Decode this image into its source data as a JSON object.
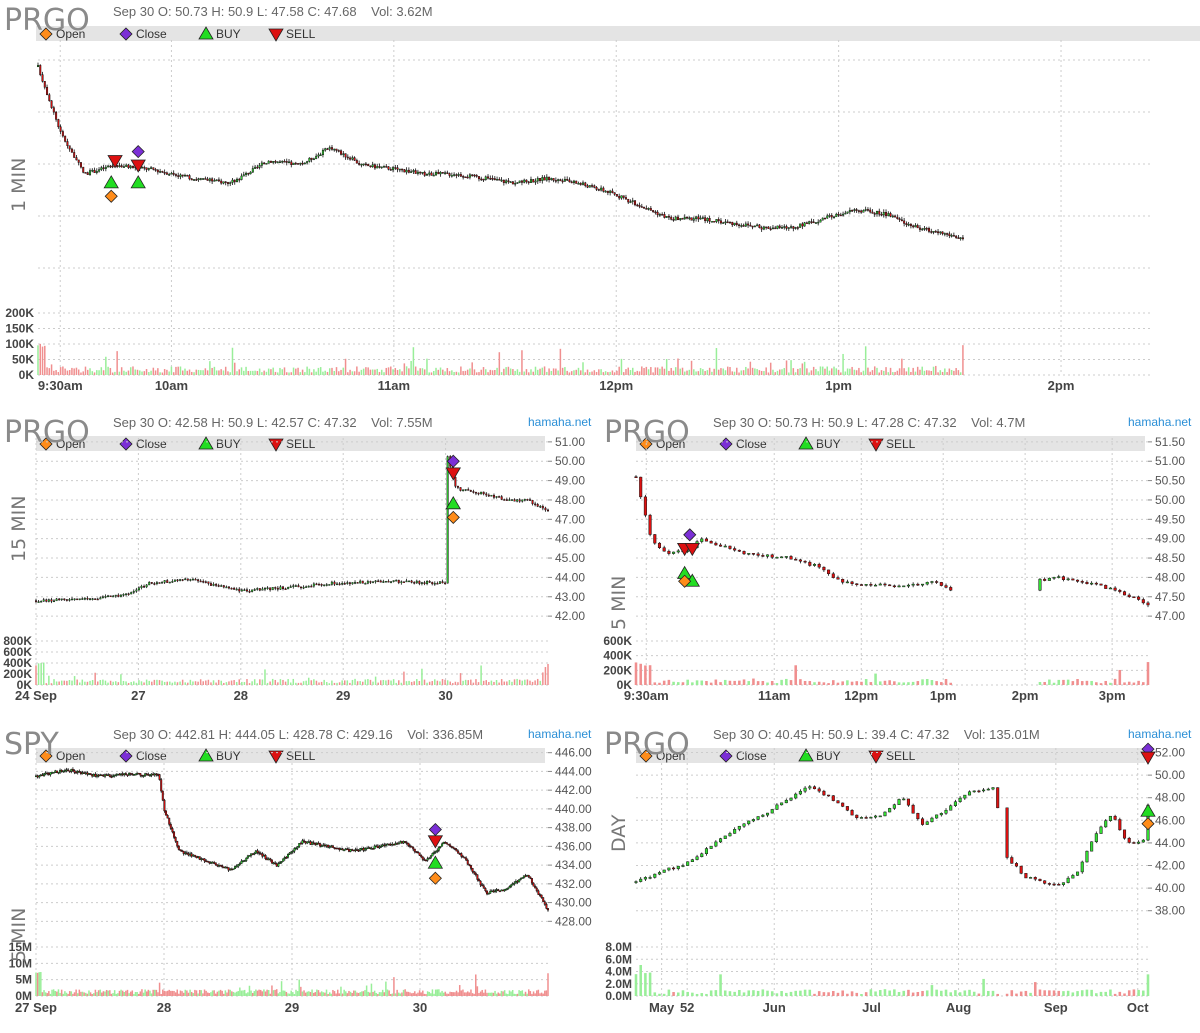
{
  "colors": {
    "up": "#33dd33",
    "down": "#dd1111",
    "volUp": "#99ee99",
    "volDown": "#f08f8f",
    "grid": "#cccccc",
    "open": "#ff8c1a",
    "close": "#7b2fd6",
    "buy": "#22dd22",
    "sell": "#dd1111"
  },
  "legend": {
    "open": "Open",
    "close": "Close",
    "buy": "BUY",
    "sell": "SELL"
  },
  "panels": {
    "p1": {
      "symbol": "PRGO",
      "date": "Sep 30",
      "o": "O: 50.73",
      "h": "H: 50.9",
      "l": "L: 47.58",
      "c": "C: 47.68",
      "vol": "Vol: 3.62M",
      "timeframe": "1 MIN",
      "site": ""
    },
    "p2": {
      "symbol": "PRGO",
      "date": "Sep 30",
      "o": "O: 42.58",
      "h": "H: 50.9",
      "l": "L: 42.57",
      "c": "C: 47.32",
      "vol": "Vol: 7.55M",
      "timeframe": "15 MIN",
      "site": "hamaha.net"
    },
    "p3": {
      "symbol": "PRGO",
      "date": "Sep 30",
      "o": "O: 50.73",
      "h": "H: 50.9",
      "l": "L: 47.28",
      "c": "C: 47.32",
      "vol": "Vol: 4.7M",
      "timeframe": "5 MIN",
      "site": "hamaha.net"
    },
    "p4": {
      "symbol": "SPY",
      "date": "Sep 30",
      "o": "O: 442.81",
      "h": "H: 444.05",
      "l": "L: 428.78",
      "c": "C: 429.16",
      "vol": "Vol: 336.85M",
      "timeframe": "5 MIN",
      "site": "hamaha.net"
    },
    "p5": {
      "symbol": "PRGO",
      "date": "Sep 30",
      "o": "O: 40.45",
      "h": "H: 50.9",
      "l": "L: 39.4",
      "c": "C: 47.32",
      "vol": "Vol: 135.01M",
      "timeframe": "DAY",
      "site": "hamaha.net"
    }
  },
  "chart_data": [
    {
      "id": "p1",
      "type": "candlestick",
      "title": "PRGO 1 MIN",
      "xlabels": [
        "9:30am",
        "10am",
        "11am",
        "12pm",
        "1pm",
        "2pm"
      ],
      "ylabels": [],
      "vol_labels": [
        "200K",
        "150K",
        "100K",
        "50K",
        "0K"
      ],
      "ylim": [
        45.6,
        51.2
      ],
      "vol_max": 230000,
      "path": [
        [
          0,
          50.6
        ],
        [
          0.03,
          49.1
        ],
        [
          0.06,
          48.2
        ],
        [
          0.1,
          48.4
        ],
        [
          0.15,
          48.3
        ],
        [
          0.2,
          48.1
        ],
        [
          0.25,
          48.0
        ],
        [
          0.3,
          48.5
        ],
        [
          0.34,
          48.4
        ],
        [
          0.38,
          48.8
        ],
        [
          0.42,
          48.4
        ],
        [
          0.47,
          48.3
        ],
        [
          0.5,
          48.2
        ],
        [
          0.54,
          48.2
        ],
        [
          0.58,
          48.1
        ],
        [
          0.62,
          48.0
        ],
        [
          0.66,
          48.1
        ],
        [
          0.7,
          48.0
        ],
        [
          0.74,
          47.8
        ],
        [
          0.78,
          47.5
        ],
        [
          0.82,
          47.2
        ],
        [
          0.86,
          47.2
        ],
        [
          0.9,
          47.1
        ],
        [
          0.94,
          47.0
        ],
        [
          0.98,
          47.0
        ],
        [
          1.02,
          47.2
        ],
        [
          1.06,
          47.4
        ],
        [
          1.1,
          47.3
        ],
        [
          1.14,
          47.0
        ],
        [
          1.18,
          46.85
        ],
        [
          1.2,
          46.75
        ]
      ],
      "xrange": [
        0,
        1.3
      ],
      "markers": [
        {
          "kind": "buy",
          "t": 0.095,
          "price": 48.0
        },
        {
          "kind": "buy",
          "t": 0.13,
          "price": 48.0
        },
        {
          "kind": "open",
          "t": 0.095,
          "price": 47.7
        },
        {
          "kind": "sell",
          "t": 0.1,
          "price": 48.5
        },
        {
          "kind": "sell",
          "t": 0.13,
          "price": 48.4
        },
        {
          "kind": "close",
          "t": 0.13,
          "price": 48.7
        }
      ]
    },
    {
      "id": "p2",
      "type": "candlestick",
      "title": "PRGO 15 MIN",
      "xlabels": [
        "24 Sep",
        "27",
        "28",
        "29",
        "30"
      ],
      "ylabels": [
        "51.00",
        "50.00",
        "49.00",
        "48.00",
        "47.00",
        "46.00",
        "45.00",
        "44.00",
        "43.00",
        "42.00"
      ],
      "vol_labels": [
        "800K",
        "600K",
        "400K",
        "200K",
        "0K"
      ],
      "ylim": [
        41.8,
        51.2
      ],
      "vol_max": 900000,
      "path": [
        [
          0,
          42.8
        ],
        [
          0.1,
          42.9
        ],
        [
          0.18,
          43.1
        ],
        [
          0.22,
          43.7
        ],
        [
          0.3,
          43.9
        ],
        [
          0.4,
          43.3
        ],
        [
          0.5,
          43.5
        ],
        [
          0.58,
          43.7
        ],
        [
          0.7,
          43.8
        ],
        [
          0.8,
          43.7
        ],
        [
          0.8,
          50.6
        ],
        [
          0.82,
          48.6
        ],
        [
          0.88,
          48.3
        ],
        [
          0.92,
          48.0
        ],
        [
          0.96,
          48.0
        ],
        [
          1.0,
          47.4
        ]
      ],
      "xrange": [
        0,
        1.0
      ],
      "markers": [
        {
          "kind": "close",
          "t": 0.815,
          "price": 50.0
        },
        {
          "kind": "sell",
          "t": 0.815,
          "price": 49.4
        },
        {
          "kind": "buy",
          "t": 0.815,
          "price": 47.8
        },
        {
          "kind": "open",
          "t": 0.815,
          "price": 47.1
        }
      ]
    },
    {
      "id": "p3",
      "type": "candlestick",
      "title": "PRGO 5 MIN",
      "xlabels": [
        "9:30am",
        "11am",
        "12pm",
        "1pm",
        "2pm",
        "3pm"
      ],
      "ylabels": [
        "51.50",
        "51.00",
        "50.50",
        "50.00",
        "49.50",
        "49.00",
        "48.50",
        "48.00",
        "47.50",
        "47.00"
      ],
      "vol_labels": [
        "600K",
        "400K",
        "200K",
        "0K"
      ],
      "ylim": [
        46.9,
        51.6
      ],
      "vol_max": 650000,
      "path": [
        [
          0,
          50.6
        ],
        [
          0.03,
          49.0
        ],
        [
          0.06,
          48.6
        ],
        [
          0.1,
          48.7
        ],
        [
          0.13,
          49.0
        ],
        [
          0.17,
          48.8
        ],
        [
          0.22,
          48.6
        ],
        [
          0.3,
          48.5
        ],
        [
          0.35,
          48.3
        ],
        [
          0.4,
          47.9
        ],
        [
          0.45,
          47.8
        ],
        [
          0.55,
          47.8
        ],
        [
          0.58,
          47.9
        ],
        [
          0.62,
          47.6
        ],
        [
          0.66,
          47.6
        ],
        [
          0.78,
          47.9
        ],
        [
          0.82,
          48.0
        ],
        [
          0.9,
          47.8
        ],
        [
          0.95,
          47.6
        ],
        [
          1.0,
          47.3
        ]
      ],
      "xrange": [
        0,
        1.0
      ],
      "markers": [
        {
          "kind": "close",
          "t": 0.105,
          "price": 49.1
        },
        {
          "kind": "sell",
          "t": 0.095,
          "price": 48.75
        },
        {
          "kind": "sell",
          "t": 0.11,
          "price": 48.75
        },
        {
          "kind": "buy",
          "t": 0.095,
          "price": 48.1
        },
        {
          "kind": "buy",
          "t": 0.11,
          "price": 47.9
        },
        {
          "kind": "open",
          "t": 0.095,
          "price": 47.9
        }
      ]
    },
    {
      "id": "p4",
      "type": "candlestick",
      "title": "SPY 5 MIN",
      "xlabels": [
        "27 Sep",
        "28",
        "29",
        "30"
      ],
      "ylabels": [
        "446.00",
        "444.00",
        "442.00",
        "440.00",
        "438.00",
        "436.00",
        "434.00",
        "432.00",
        "430.00",
        "428.00"
      ],
      "vol_labels": [
        "15M",
        "10M",
        "5M",
        "0M"
      ],
      "ylim": [
        427.5,
        446.5
      ],
      "vol_max": 16000000,
      "path": [
        [
          0,
          443.5
        ],
        [
          0.06,
          444.2
        ],
        [
          0.12,
          443.5
        ],
        [
          0.18,
          443.7
        ],
        [
          0.24,
          443.6
        ],
        [
          0.25,
          440.0
        ],
        [
          0.28,
          435.5
        ],
        [
          0.33,
          434.5
        ],
        [
          0.38,
          433.5
        ],
        [
          0.43,
          435.5
        ],
        [
          0.47,
          434.0
        ],
        [
          0.52,
          436.5
        ],
        [
          0.57,
          436.0
        ],
        [
          0.62,
          435.5
        ],
        [
          0.67,
          436.0
        ],
        [
          0.72,
          436.5
        ],
        [
          0.76,
          434.5
        ],
        [
          0.8,
          436.5
        ],
        [
          0.84,
          434.5
        ],
        [
          0.88,
          431.0
        ],
        [
          0.92,
          431.5
        ],
        [
          0.96,
          433.0
        ],
        [
          1.0,
          429.2
        ]
      ],
      "xrange": [
        0,
        1.0
      ],
      "markers": [
        {
          "kind": "close",
          "t": 0.78,
          "price": 437.8
        },
        {
          "kind": "sell",
          "t": 0.78,
          "price": 436.6
        },
        {
          "kind": "buy",
          "t": 0.78,
          "price": 434.2
        },
        {
          "kind": "open",
          "t": 0.78,
          "price": 432.6
        }
      ]
    },
    {
      "id": "p5",
      "type": "candlestick",
      "title": "PRGO DAY",
      "xlabels": [
        "May",
        "52",
        "Jun",
        "Jul",
        "Aug",
        "Sep",
        "Oct"
      ],
      "ylabels": [
        "52.00",
        "50.00",
        "48.00",
        "46.00",
        "44.00",
        "42.00",
        "40.00",
        "38.00"
      ],
      "vol_labels": [
        "8.0M",
        "6.0M",
        "4.0M",
        "2.0M",
        "0.0M"
      ],
      "ylim": [
        37,
        52.4
      ],
      "vol_max": 9000000,
      "path": [
        [
          0,
          40.5
        ],
        [
          0.05,
          41.5
        ],
        [
          0.1,
          42.2
        ],
        [
          0.15,
          43.8
        ],
        [
          0.2,
          45.5
        ],
        [
          0.25,
          46.5
        ],
        [
          0.3,
          48.0
        ],
        [
          0.34,
          49.0
        ],
        [
          0.38,
          48.0
        ],
        [
          0.43,
          46.2
        ],
        [
          0.48,
          46.5
        ],
        [
          0.52,
          48.0
        ],
        [
          0.56,
          45.5
        ],
        [
          0.6,
          46.8
        ],
        [
          0.65,
          48.5
        ],
        [
          0.7,
          49.0
        ],
        [
          0.72,
          43.0
        ],
        [
          0.76,
          41.0
        ],
        [
          0.82,
          40.2
        ],
        [
          0.86,
          41.2
        ],
        [
          0.9,
          45.0
        ],
        [
          0.93,
          46.5
        ],
        [
          0.96,
          44.0
        ],
        [
          0.99,
          44.0
        ],
        [
          1.0,
          47.3
        ]
      ],
      "xrange": [
        0,
        1.0
      ],
      "markers": [
        {
          "kind": "close",
          "t": 1.0,
          "price": 52.3
        },
        {
          "kind": "sell",
          "t": 1.0,
          "price": 51.6
        },
        {
          "kind": "buy",
          "t": 1.0,
          "price": 46.8
        },
        {
          "kind": "open",
          "t": 1.0,
          "price": 45.7
        }
      ]
    }
  ]
}
